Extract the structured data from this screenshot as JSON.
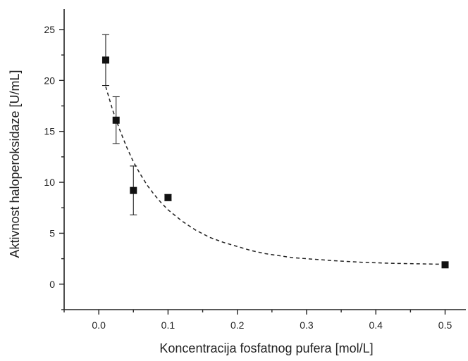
{
  "chart_data": {
    "type": "scatter",
    "xlabel": "Koncentracija fosfatnog pufera [mol/L]",
    "ylabel": "Aktivnost haloperoksidaze [U/mL]",
    "xlim": [
      -0.05,
      0.53
    ],
    "ylim": [
      -2.5,
      27
    ],
    "x_ticks": [
      0.0,
      0.1,
      0.2,
      0.3,
      0.4,
      0.5
    ],
    "x_tick_labels": [
      "0.0",
      "0.1",
      "0.2",
      "0.3",
      "0.4",
      "0.5"
    ],
    "y_ticks": [
      0,
      5,
      10,
      15,
      20,
      25
    ],
    "y_tick_labels": [
      "0",
      "5",
      "10",
      "15",
      "20",
      "25"
    ],
    "grid": false,
    "series": [
      {
        "marker": "square",
        "x": [
          0.01,
          0.025,
          0.05,
          0.1,
          0.5
        ],
        "y": [
          22.0,
          16.1,
          9.2,
          8.5,
          1.9
        ],
        "error": [
          2.5,
          2.3,
          2.4,
          0.3,
          0.2
        ]
      }
    ],
    "fit_curve": {
      "style": "dashed",
      "x": [
        0.01,
        0.02,
        0.03,
        0.04,
        0.05,
        0.06,
        0.07,
        0.08,
        0.09,
        0.1,
        0.12,
        0.14,
        0.16,
        0.18,
        0.2,
        0.22,
        0.24,
        0.26,
        0.28,
        0.3,
        0.34,
        0.38,
        0.42,
        0.46,
        0.5
      ],
      "y": [
        19.4,
        17.1,
        15.2,
        13.5,
        12.0,
        10.8,
        9.7,
        8.8,
        8.0,
        7.3,
        6.2,
        5.3,
        4.6,
        4.1,
        3.7,
        3.3,
        3.0,
        2.8,
        2.6,
        2.5,
        2.3,
        2.15,
        2.05,
        2.0,
        1.95
      ]
    }
  }
}
